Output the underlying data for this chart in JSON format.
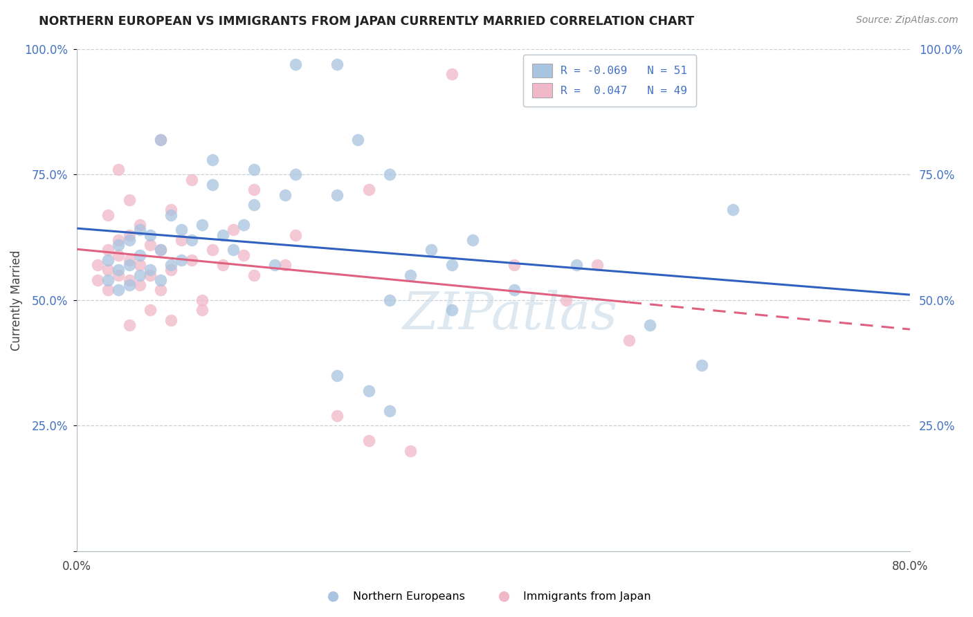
{
  "title": "NORTHERN EUROPEAN VS IMMIGRANTS FROM JAPAN CURRENTLY MARRIED CORRELATION CHART",
  "source": "Source: ZipAtlas.com",
  "ylabel": "Currently Married",
  "watermark": "ZIPatlas",
  "xlim": [
    0.0,
    0.8
  ],
  "ylim": [
    0.0,
    1.0
  ],
  "xtick_vals": [
    0.0,
    0.2,
    0.4,
    0.6,
    0.8
  ],
  "xtick_labels": [
    "0.0%",
    "",
    "",
    "",
    "80.0%"
  ],
  "ytick_vals": [
    0.0,
    0.25,
    0.5,
    0.75,
    1.0
  ],
  "ytick_labels": [
    "",
    "25.0%",
    "50.0%",
    "75.0%",
    "100.0%"
  ],
  "blue_color": "#a8c4e0",
  "pink_color": "#f0b8c8",
  "blue_line_color": "#3060c0",
  "pink_line_color": "#e06080",
  "blue_scatter": [
    [
      0.21,
      0.97
    ],
    [
      0.25,
      0.97
    ],
    [
      0.08,
      0.82
    ],
    [
      0.27,
      0.82
    ],
    [
      0.13,
      0.78
    ],
    [
      0.17,
      0.76
    ],
    [
      0.21,
      0.75
    ],
    [
      0.3,
      0.75
    ],
    [
      0.13,
      0.73
    ],
    [
      0.2,
      0.71
    ],
    [
      0.25,
      0.71
    ],
    [
      0.17,
      0.69
    ],
    [
      0.09,
      0.67
    ],
    [
      0.12,
      0.65
    ],
    [
      0.16,
      0.65
    ],
    [
      0.06,
      0.64
    ],
    [
      0.1,
      0.64
    ],
    [
      0.07,
      0.63
    ],
    [
      0.14,
      0.63
    ],
    [
      0.05,
      0.62
    ],
    [
      0.11,
      0.62
    ],
    [
      0.04,
      0.61
    ],
    [
      0.08,
      0.6
    ],
    [
      0.15,
      0.6
    ],
    [
      0.06,
      0.59
    ],
    [
      0.03,
      0.58
    ],
    [
      0.1,
      0.58
    ],
    [
      0.05,
      0.57
    ],
    [
      0.09,
      0.57
    ],
    [
      0.19,
      0.57
    ],
    [
      0.36,
      0.57
    ],
    [
      0.04,
      0.56
    ],
    [
      0.07,
      0.56
    ],
    [
      0.06,
      0.55
    ],
    [
      0.32,
      0.55
    ],
    [
      0.03,
      0.54
    ],
    [
      0.08,
      0.54
    ],
    [
      0.05,
      0.53
    ],
    [
      0.04,
      0.52
    ],
    [
      0.3,
      0.5
    ],
    [
      0.36,
      0.48
    ],
    [
      0.55,
      0.45
    ],
    [
      0.6,
      0.37
    ],
    [
      0.25,
      0.35
    ],
    [
      0.28,
      0.32
    ],
    [
      0.3,
      0.28
    ],
    [
      0.63,
      0.68
    ],
    [
      0.48,
      0.57
    ],
    [
      0.42,
      0.52
    ],
    [
      0.38,
      0.62
    ],
    [
      0.34,
      0.6
    ]
  ],
  "pink_scatter": [
    [
      0.08,
      0.82
    ],
    [
      0.04,
      0.76
    ],
    [
      0.11,
      0.74
    ],
    [
      0.17,
      0.72
    ],
    [
      0.28,
      0.72
    ],
    [
      0.05,
      0.7
    ],
    [
      0.09,
      0.68
    ],
    [
      0.03,
      0.67
    ],
    [
      0.06,
      0.65
    ],
    [
      0.15,
      0.64
    ],
    [
      0.05,
      0.63
    ],
    [
      0.21,
      0.63
    ],
    [
      0.04,
      0.62
    ],
    [
      0.1,
      0.62
    ],
    [
      0.07,
      0.61
    ],
    [
      0.03,
      0.6
    ],
    [
      0.08,
      0.6
    ],
    [
      0.13,
      0.6
    ],
    [
      0.04,
      0.59
    ],
    [
      0.16,
      0.59
    ],
    [
      0.05,
      0.58
    ],
    [
      0.11,
      0.58
    ],
    [
      0.02,
      0.57
    ],
    [
      0.06,
      0.57
    ],
    [
      0.14,
      0.57
    ],
    [
      0.2,
      0.57
    ],
    [
      0.42,
      0.57
    ],
    [
      0.03,
      0.56
    ],
    [
      0.09,
      0.56
    ],
    [
      0.04,
      0.55
    ],
    [
      0.07,
      0.55
    ],
    [
      0.17,
      0.55
    ],
    [
      0.02,
      0.54
    ],
    [
      0.05,
      0.54
    ],
    [
      0.06,
      0.53
    ],
    [
      0.03,
      0.52
    ],
    [
      0.08,
      0.52
    ],
    [
      0.12,
      0.5
    ],
    [
      0.07,
      0.48
    ],
    [
      0.12,
      0.48
    ],
    [
      0.09,
      0.46
    ],
    [
      0.05,
      0.45
    ],
    [
      0.53,
      0.42
    ],
    [
      0.25,
      0.27
    ],
    [
      0.28,
      0.22
    ],
    [
      0.32,
      0.2
    ],
    [
      0.36,
      0.95
    ],
    [
      0.5,
      0.57
    ],
    [
      0.47,
      0.5
    ]
  ]
}
